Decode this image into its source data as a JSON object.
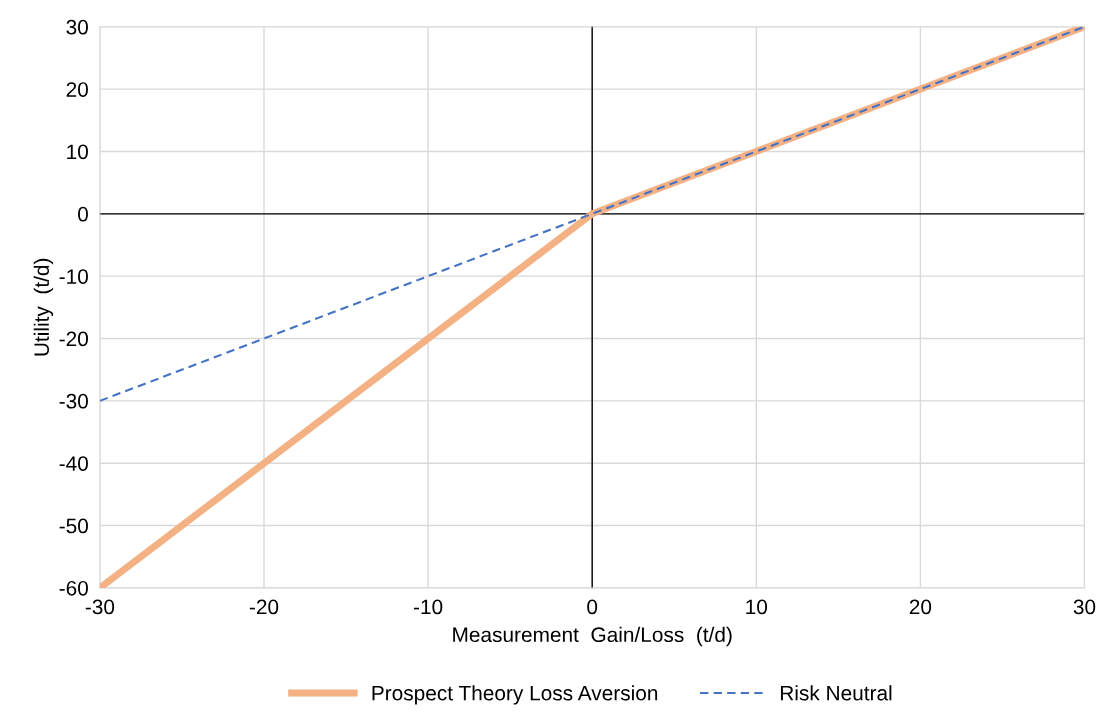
{
  "chart_data": {
    "type": "line",
    "xlabel": "Measurement  Gain/Loss  (t/d)",
    "ylabel": "Utility  (t/d)",
    "series": [
      {
        "name": "Prospect Theory Loss Aversion",
        "color": "#f4b183",
        "x": [
          -30,
          0,
          30
        ],
        "values": [
          -60,
          0,
          30
        ],
        "line_style": "solid"
      },
      {
        "name": "Risk Neutral",
        "color": "#4472c4",
        "x": [
          -30,
          0,
          30
        ],
        "values": [
          -30,
          0,
          30
        ],
        "line_style": "dashed"
      }
    ],
    "xlim": [
      -30,
      30
    ],
    "xticks": [
      -30,
      -20,
      -10,
      0,
      10,
      20,
      30
    ],
    "ylim": [
      -60,
      30
    ],
    "yticks": [
      -60,
      -50,
      -40,
      -30,
      -20,
      -10,
      0,
      10,
      20,
      30
    ],
    "grid": true,
    "legend": "bottom",
    "marker": "none"
  }
}
